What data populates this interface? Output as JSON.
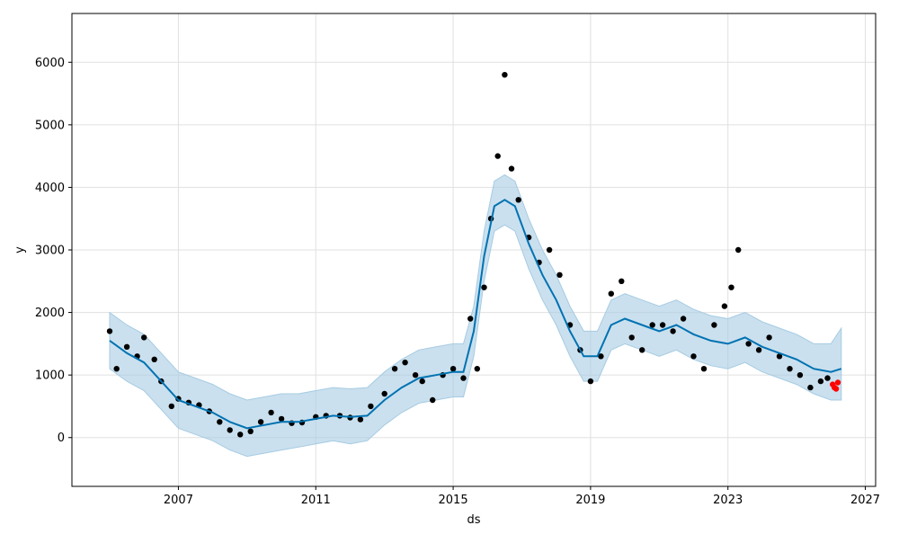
{
  "chart_data": {
    "type": "line",
    "xlabel": "ds",
    "ylabel": "y",
    "xlim": [
      2003.9,
      2027.3
    ],
    "ylim": [
      -780,
      6780
    ],
    "x_ticks": [
      2007,
      2011,
      2015,
      2019,
      2023,
      2027
    ],
    "x_tick_labels": [
      "2007",
      "2011",
      "2015",
      "2019",
      "2023",
      "2027"
    ],
    "y_ticks": [
      0,
      1000,
      2000,
      3000,
      4000,
      5000,
      6000
    ],
    "y_tick_labels": [
      "0",
      "1000",
      "2000",
      "3000",
      "4000",
      "5000",
      "6000"
    ],
    "grid": true,
    "colors": {
      "observed": "#000000",
      "forecast": "#0072B2",
      "band": "#a6cbe3",
      "actual_future": "#ff0000"
    },
    "series": [
      {
        "role": "observed",
        "marker": "dot",
        "x": [
          2005.0,
          2005.2,
          2005.5,
          2005.8,
          2006.0,
          2006.3,
          2006.5,
          2006.8,
          2007.0,
          2007.3,
          2007.6,
          2007.9,
          2008.2,
          2008.5,
          2008.8,
          2009.1,
          2009.4,
          2009.7,
          2010.0,
          2010.3,
          2010.6,
          2011.0,
          2011.3,
          2011.7,
          2012.0,
          2012.3,
          2012.6,
          2013.0,
          2013.3,
          2013.6,
          2013.9,
          2014.1,
          2014.4,
          2014.7,
          2015.0,
          2015.3,
          2015.5,
          2015.7,
          2015.9,
          2016.1,
          2016.3,
          2016.5,
          2016.7,
          2016.9,
          2017.2,
          2017.5,
          2017.8,
          2018.1,
          2018.4,
          2018.7,
          2019.0,
          2019.3,
          2019.6,
          2019.9,
          2020.2,
          2020.5,
          2020.8,
          2021.1,
          2021.4,
          2021.7,
          2022.0,
          2022.3,
          2022.6,
          2022.9,
          2023.1,
          2023.3,
          2023.6,
          2023.9,
          2024.2,
          2024.5,
          2024.8,
          2025.1,
          2025.4,
          2025.7,
          2025.9
        ],
        "values": [
          1700,
          1100,
          1450,
          1300,
          1600,
          1250,
          900,
          500,
          620,
          560,
          520,
          420,
          250,
          120,
          50,
          100,
          250,
          400,
          300,
          230,
          240,
          330,
          350,
          350,
          320,
          290,
          500,
          700,
          1100,
          1200,
          1000,
          900,
          600,
          1000,
          1100,
          950,
          1900,
          1100,
          2400,
          3500,
          4500,
          5800,
          4300,
          3800,
          3200,
          2800,
          3000,
          2600,
          1800,
          1400,
          900,
          1300,
          2300,
          2500,
          1600,
          1400,
          1800,
          1800,
          1700,
          1900,
          1300,
          1100,
          1800,
          2100,
          2400,
          3000,
          1500,
          1400,
          1600,
          1300,
          1100,
          1000,
          800,
          900,
          950
        ]
      },
      {
        "role": "forecast",
        "x": [
          2005.0,
          2005.5,
          2006.0,
          2006.5,
          2007.0,
          2007.5,
          2008.0,
          2008.5,
          2009.0,
          2009.5,
          2010.0,
          2010.5,
          2011.0,
          2011.5,
          2012.0,
          2012.5,
          2013.0,
          2013.5,
          2014.0,
          2014.5,
          2015.0,
          2015.3,
          2015.6,
          2015.9,
          2016.2,
          2016.5,
          2016.8,
          2017.2,
          2017.6,
          2018.0,
          2018.4,
          2018.8,
          2019.2,
          2019.6,
          2020.0,
          2020.5,
          2021.0,
          2021.5,
          2022.0,
          2022.5,
          2023.0,
          2023.5,
          2024.0,
          2024.5,
          2025.0,
          2025.5,
          2026.0,
          2026.3
        ],
        "values": [
          1550,
          1350,
          1200,
          900,
          600,
          500,
          400,
          250,
          150,
          200,
          250,
          250,
          300,
          350,
          330,
          350,
          600,
          800,
          950,
          1000,
          1050,
          1050,
          1700,
          2900,
          3700,
          3800,
          3700,
          3100,
          2600,
          2200,
          1700,
          1300,
          1300,
          1800,
          1900,
          1800,
          1700,
          1800,
          1650,
          1550,
          1500,
          1600,
          1450,
          1350,
          1250,
          1100,
          1050,
          1100
        ]
      },
      {
        "role": "band",
        "x": [
          2005.0,
          2005.5,
          2006.0,
          2006.5,
          2007.0,
          2007.5,
          2008.0,
          2008.5,
          2009.0,
          2009.5,
          2010.0,
          2010.5,
          2011.0,
          2011.5,
          2012.0,
          2012.5,
          2013.0,
          2013.5,
          2014.0,
          2014.5,
          2015.0,
          2015.3,
          2015.6,
          2015.9,
          2016.2,
          2016.5,
          2016.8,
          2017.2,
          2017.6,
          2018.0,
          2018.4,
          2018.8,
          2019.2,
          2019.6,
          2020.0,
          2020.5,
          2021.0,
          2021.5,
          2022.0,
          2022.5,
          2023.0,
          2023.5,
          2024.0,
          2024.5,
          2025.0,
          2025.5,
          2026.0,
          2026.3
        ],
        "lower": [
          1100,
          900,
          750,
          450,
          150,
          50,
          -50,
          -200,
          -300,
          -250,
          -200,
          -150,
          -100,
          -50,
          -100,
          -50,
          200,
          400,
          550,
          600,
          650,
          650,
          1300,
          2500,
          3300,
          3400,
          3300,
          2700,
          2200,
          1800,
          1300,
          900,
          900,
          1400,
          1500,
          1400,
          1300,
          1400,
          1250,
          1150,
          1100,
          1200,
          1050,
          950,
          850,
          700,
          600,
          600
        ],
        "upper": [
          2000,
          1800,
          1650,
          1350,
          1050,
          950,
          850,
          700,
          600,
          650,
          700,
          700,
          750,
          800,
          780,
          800,
          1050,
          1250,
          1400,
          1450,
          1500,
          1500,
          2100,
          3300,
          4100,
          4200,
          4100,
          3500,
          3000,
          2600,
          2100,
          1700,
          1700,
          2200,
          2300,
          2200,
          2100,
          2200,
          2050,
          1950,
          1900,
          2000,
          1850,
          1750,
          1650,
          1500,
          1500,
          1750
        ]
      },
      {
        "role": "actual_future",
        "marker": "dot",
        "x": [
          2026.05,
          2026.1,
          2026.15,
          2026.2
        ],
        "values": [
          850,
          800,
          780,
          880
        ]
      }
    ]
  }
}
